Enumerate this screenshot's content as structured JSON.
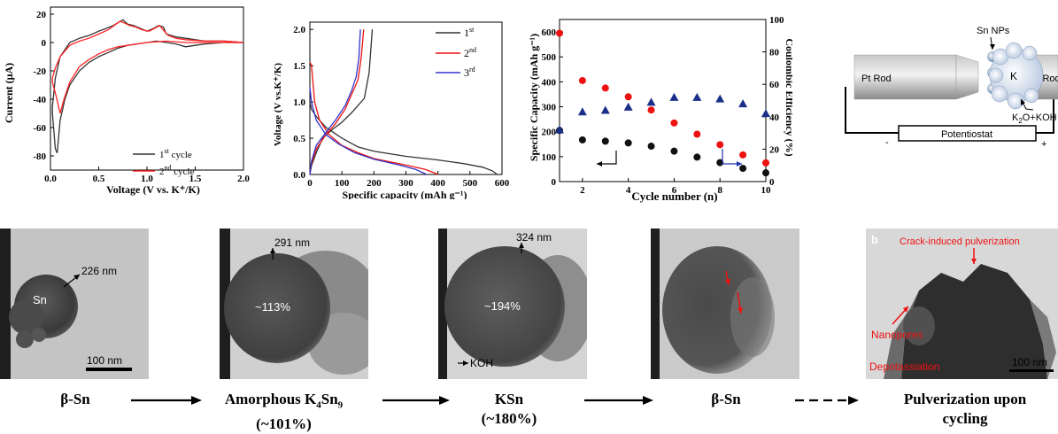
{
  "cv_chart": {
    "type": "line",
    "xlabel": "Voltage (V vs. K⁺/K)",
    "ylabel": "Current (μA)",
    "xlim": [
      0.0,
      2.0
    ],
    "ylim": [
      -90,
      25
    ],
    "xticks": [
      "0.0",
      "0.5",
      "1.0",
      "1.5",
      "2.0"
    ],
    "yticks": [
      "20",
      "0",
      "-20",
      "-40",
      "-60",
      "-80"
    ],
    "legend": [
      "1st cycle",
      "2nd cycle"
    ],
    "legend_labels": {
      "c1_pre": "1",
      "c1_sup": "st",
      "c1_post": " cycle",
      "c2_pre": "2",
      "c2_sup": "nd",
      "c2_post": " cycle"
    },
    "colors": {
      "first": "#333333",
      "second": "#ff2222"
    },
    "series": [
      {
        "name": "1st cycle",
        "color": "#333333",
        "points": [
          [
            0.02,
            -50
          ],
          [
            0.05,
            -75
          ],
          [
            0.07,
            -78
          ],
          [
            0.1,
            -55
          ],
          [
            0.15,
            -40
          ],
          [
            0.2,
            -30
          ],
          [
            0.3,
            -20
          ],
          [
            0.4,
            -14
          ],
          [
            0.5,
            -10
          ],
          [
            0.6,
            -7
          ],
          [
            0.7,
            -4
          ],
          [
            0.8,
            -2
          ],
          [
            0.9,
            -1
          ],
          [
            1.0,
            0
          ],
          [
            1.1,
            1
          ],
          [
            1.2,
            0
          ],
          [
            1.3,
            -1
          ],
          [
            1.4,
            -3
          ],
          [
            1.5,
            -2
          ],
          [
            1.6,
            -1
          ],
          [
            1.8,
            0
          ],
          [
            2.0,
            0
          ],
          [
            1.8,
            1
          ],
          [
            1.6,
            1
          ],
          [
            1.5,
            2
          ],
          [
            1.4,
            3
          ],
          [
            1.3,
            4
          ],
          [
            1.2,
            6
          ],
          [
            1.17,
            11
          ],
          [
            1.12,
            12
          ],
          [
            1.07,
            10
          ],
          [
            1.0,
            8
          ],
          [
            0.93,
            10
          ],
          [
            0.86,
            12
          ],
          [
            0.8,
            13
          ],
          [
            0.75,
            16
          ],
          [
            0.7,
            14
          ],
          [
            0.65,
            12
          ],
          [
            0.58,
            10
          ],
          [
            0.5,
            8
          ],
          [
            0.4,
            5
          ],
          [
            0.3,
            3
          ],
          [
            0.2,
            0
          ],
          [
            0.1,
            -10
          ],
          [
            0.05,
            -25
          ],
          [
            0.02,
            -45
          ]
        ]
      },
      {
        "name": "2nd cycle",
        "color": "#ff2222",
        "points": [
          [
            0.02,
            -28
          ],
          [
            0.06,
            -38
          ],
          [
            0.1,
            -50
          ],
          [
            0.14,
            -40
          ],
          [
            0.2,
            -28
          ],
          [
            0.3,
            -17
          ],
          [
            0.4,
            -12
          ],
          [
            0.5,
            -8
          ],
          [
            0.6,
            -5
          ],
          [
            0.7,
            -3
          ],
          [
            0.8,
            -2
          ],
          [
            0.9,
            -1
          ],
          [
            1.0,
            0
          ],
          [
            1.2,
            1
          ],
          [
            1.4,
            0
          ],
          [
            1.6,
            0
          ],
          [
            2.0,
            0
          ],
          [
            1.8,
            1
          ],
          [
            1.6,
            1
          ],
          [
            1.4,
            2
          ],
          [
            1.3,
            3
          ],
          [
            1.22,
            5
          ],
          [
            1.18,
            8
          ],
          [
            1.13,
            12
          ],
          [
            1.08,
            10
          ],
          [
            1.02,
            8
          ],
          [
            0.95,
            9
          ],
          [
            0.88,
            11
          ],
          [
            0.82,
            12
          ],
          [
            0.76,
            14
          ],
          [
            0.72,
            15
          ],
          [
            0.66,
            12
          ],
          [
            0.6,
            9
          ],
          [
            0.5,
            6
          ],
          [
            0.4,
            3
          ],
          [
            0.3,
            1
          ],
          [
            0.2,
            -2
          ],
          [
            0.1,
            -10
          ],
          [
            0.05,
            -18
          ],
          [
            0.02,
            -25
          ]
        ]
      }
    ]
  },
  "gcd_chart": {
    "type": "line",
    "xlabel": "Specific capacity (mAh g⁻¹)",
    "ylabel": "Voltage (V vs.K⁺/K)",
    "xlim": [
      0,
      600
    ],
    "ylim": [
      0.0,
      2.1
    ],
    "xticks": [
      "0",
      "100",
      "200",
      "300",
      "400",
      "500",
      "600"
    ],
    "yticks": [
      "0.0",
      "0.5",
      "1.0",
      "1.5",
      "2.0"
    ],
    "legend": [
      "1st",
      "2nd",
      "3rd"
    ],
    "legend_labels": {
      "l1": "1",
      "l1s": "st",
      "l2": "2",
      "l2s": "nd",
      "l3": "3",
      "l3s": "rd"
    },
    "series": [
      {
        "name": "1st",
        "color": "#333333",
        "discharge": [
          [
            0,
            1.0
          ],
          [
            5,
            0.9
          ],
          [
            20,
            0.8
          ],
          [
            50,
            0.65
          ],
          [
            100,
            0.5
          ],
          [
            150,
            0.38
          ],
          [
            200,
            0.32
          ],
          [
            300,
            0.25
          ],
          [
            400,
            0.2
          ],
          [
            480,
            0.15
          ],
          [
            540,
            0.1
          ],
          [
            570,
            0.05
          ],
          [
            585,
            0.0
          ]
        ],
        "charge": [
          [
            0,
            0.0
          ],
          [
            5,
            0.12
          ],
          [
            20,
            0.3
          ],
          [
            40,
            0.5
          ],
          [
            70,
            0.62
          ],
          [
            100,
            0.72
          ],
          [
            130,
            0.85
          ],
          [
            150,
            0.95
          ],
          [
            170,
            1.05
          ],
          [
            185,
            1.4
          ],
          [
            195,
            2.0
          ]
        ]
      },
      {
        "name": "2nd",
        "color": "#ee1111",
        "discharge": [
          [
            0,
            1.55
          ],
          [
            5,
            1.5
          ],
          [
            15,
            1.0
          ],
          [
            30,
            0.75
          ],
          [
            60,
            0.55
          ],
          [
            100,
            0.4
          ],
          [
            150,
            0.3
          ],
          [
            200,
            0.22
          ],
          [
            300,
            0.13
          ],
          [
            360,
            0.07
          ],
          [
            390,
            0.02
          ],
          [
            400,
            0.0
          ]
        ],
        "charge": [
          [
            0,
            0.0
          ],
          [
            5,
            0.15
          ],
          [
            20,
            0.35
          ],
          [
            50,
            0.55
          ],
          [
            80,
            0.7
          ],
          [
            110,
            0.9
          ],
          [
            130,
            1.1
          ],
          [
            150,
            1.3
          ],
          [
            160,
            1.6
          ],
          [
            168,
            2.0
          ]
        ]
      },
      {
        "name": "3rd",
        "color": "#3333cc",
        "discharge": [
          [
            0,
            1.2
          ],
          [
            5,
            1.0
          ],
          [
            20,
            0.75
          ],
          [
            50,
            0.55
          ],
          [
            90,
            0.42
          ],
          [
            140,
            0.3
          ],
          [
            200,
            0.21
          ],
          [
            280,
            0.13
          ],
          [
            330,
            0.07
          ],
          [
            355,
            0.02
          ],
          [
            365,
            0.0
          ]
        ],
        "charge": [
          [
            0,
            0.0
          ],
          [
            5,
            0.18
          ],
          [
            20,
            0.4
          ],
          [
            50,
            0.58
          ],
          [
            80,
            0.75
          ],
          [
            110,
            0.95
          ],
          [
            130,
            1.15
          ],
          [
            145,
            1.35
          ],
          [
            153,
            1.6
          ],
          [
            158,
            2.0
          ]
        ]
      }
    ]
  },
  "cycle_chart": {
    "type": "scatter",
    "xlabel": "Cycle number (n)",
    "ylabel_left": "Specific Capacity (mAh g⁻¹)",
    "ylabel_right": "Coulombic Efficiency (%)",
    "xlim": [
      1,
      10
    ],
    "ylim_left": [
      0,
      650
    ],
    "ylim_right": [
      0,
      100
    ],
    "xticks": [
      "2",
      "4",
      "6",
      "8",
      "10"
    ],
    "yticks_left": [
      "0",
      "100",
      "200",
      "300",
      "400",
      "500",
      "600"
    ],
    "yticks_right": [
      "0",
      "20",
      "40",
      "60",
      "80",
      "100"
    ],
    "x": [
      1,
      2,
      3,
      4,
      5,
      6,
      7,
      8,
      9,
      10
    ],
    "series": [
      {
        "name": "discharge",
        "color": "#ee1111",
        "marker": "circle",
        "axis": "left",
        "values": [
          595,
          405,
          375,
          340,
          287,
          235,
          190,
          148,
          107,
          75
        ]
      },
      {
        "name": "charge",
        "color": "#111111",
        "marker": "circle",
        "axis": "left",
        "values": [
          205,
          167,
          162,
          155,
          142,
          122,
          98,
          76,
          53,
          35
        ]
      },
      {
        "name": "efficiency",
        "color": "#1a2f8a",
        "marker": "triangle",
        "axis": "right",
        "values": [
          32,
          43,
          44,
          46,
          49,
          52,
          52,
          51,
          48,
          42
        ]
      }
    ]
  },
  "schematic": {
    "sn_nps": "Sn NPs",
    "pt_rod": "Pt Rod",
    "w_rod": "W Rod",
    "k_label": "K",
    "k2o_pre": "K",
    "k2o_sub": "2",
    "k2o_post": "O+KOH",
    "potentiostat": "Potentiostat",
    "minus": "-",
    "plus": "+"
  },
  "tem": {
    "img1": {
      "label_particle": "Sn",
      "size": "226 nm",
      "scale": "100 nm"
    },
    "img2": {
      "size": "291 nm",
      "expansion": "~113%"
    },
    "img3": {
      "size": "324 nm",
      "expansion": "~194%",
      "koh": "KOH"
    },
    "img5": {
      "panel": "b",
      "crack": "Crack-induced pulverization",
      "nanopores": "Nanopores",
      "depotassiation": "Depotassiation",
      "scale": "100 nm"
    }
  },
  "captions": {
    "c1": "β-Sn",
    "c2_line1_pre": "Amorphous K",
    "c2_sub1": "4",
    "c2_mid": "Sn",
    "c2_sub2": "9",
    "c2_line2": "(~101%)",
    "c3_line1": "KSn",
    "c3_line2": "(~180%)",
    "c4": "β-Sn",
    "c5_line1": "Pulverization upon",
    "c5_line2": "cycling"
  }
}
